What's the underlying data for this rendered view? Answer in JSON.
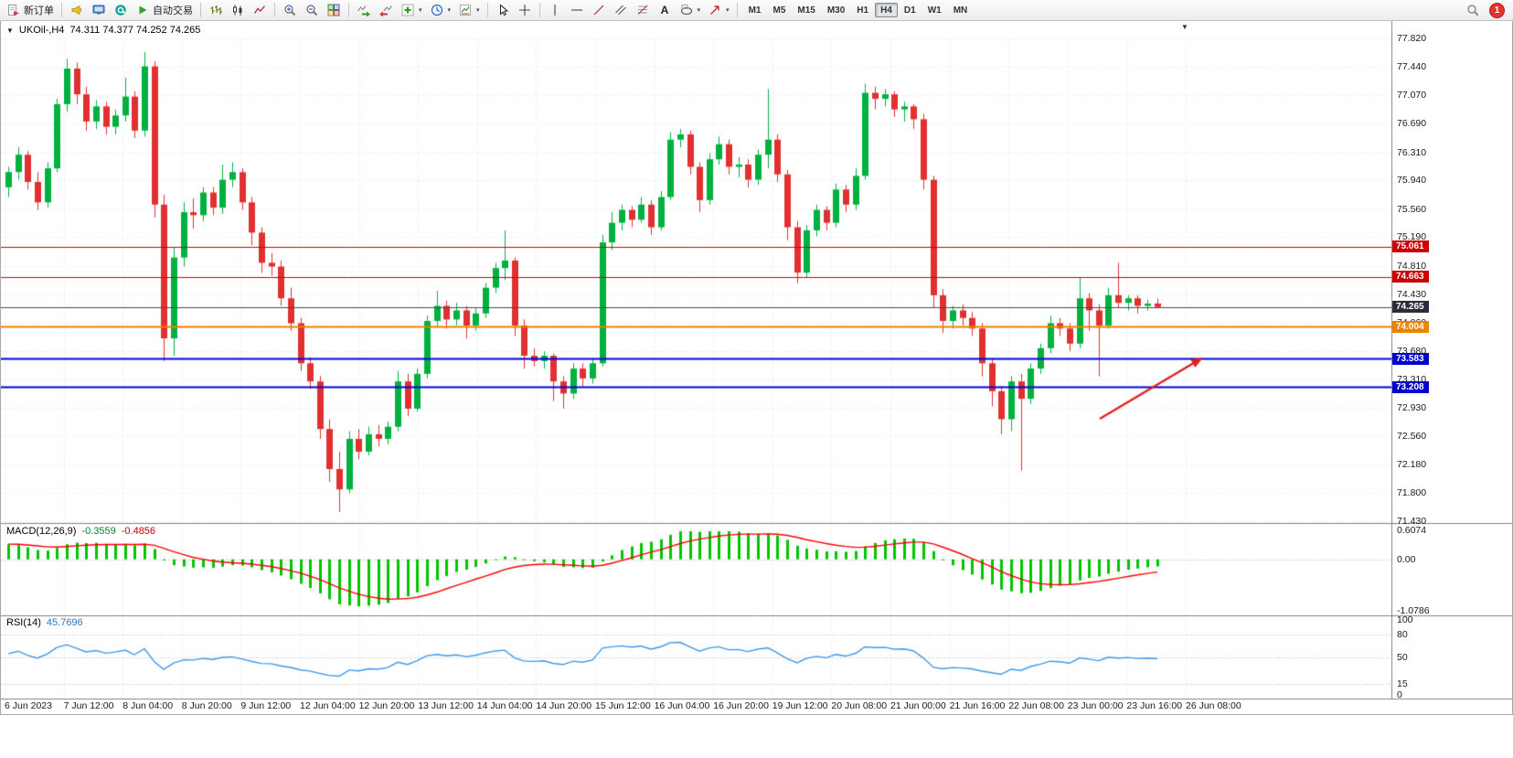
{
  "toolbar": {
    "badge": "1",
    "active_timeframe": "H4",
    "timeframes": [
      "M1",
      "M5",
      "M15",
      "M30",
      "H1",
      "H4",
      "D1",
      "W1",
      "MN"
    ],
    "items": [
      {
        "name": "new-order",
        "icon": "new-order-icon",
        "label": "新订单"
      },
      {
        "type": "sep"
      },
      {
        "name": "megaphone",
        "icon": "megaphone-icon"
      },
      {
        "name": "market-watch",
        "icon": "market-watch-icon"
      },
      {
        "name": "community",
        "icon": "community-icon"
      },
      {
        "name": "autotrading",
        "icon": "autotrading-icon",
        "label": "自动交易"
      },
      {
        "type": "sep"
      },
      {
        "name": "bar-chart",
        "icon": "bar-chart-icon"
      },
      {
        "name": "candle-chart",
        "icon": "candle-chart-icon"
      },
      {
        "name": "line-chart",
        "icon": "line-chart-icon"
      },
      {
        "type": "sep"
      },
      {
        "name": "zoom-in",
        "icon": "zoom-in-icon"
      },
      {
        "name": "zoom-out",
        "icon": "zoom-out-icon"
      },
      {
        "name": "tile-windows",
        "icon": "tile-windows-icon"
      },
      {
        "type": "sep"
      },
      {
        "name": "auto-scroll",
        "icon": "auto-scroll-icon"
      },
      {
        "name": "chart-shift",
        "icon": "chart-shift-icon"
      },
      {
        "name": "indicators",
        "icon": "indicators-icon",
        "caret": true
      },
      {
        "name": "periods",
        "icon": "periods-icon",
        "caret": true
      },
      {
        "name": "templates",
        "icon": "templates-icon",
        "caret": true
      },
      {
        "type": "sep"
      },
      {
        "name": "cursor",
        "icon": "cursor-icon"
      },
      {
        "name": "crosshair",
        "icon": "crosshair-icon"
      },
      {
        "type": "sep"
      },
      {
        "name": "vertical-line",
        "icon": "vline-icon"
      },
      {
        "name": "horizontal-line",
        "icon": "hline-icon"
      },
      {
        "name": "trendline",
        "icon": "trendline-icon"
      },
      {
        "name": "channel",
        "icon": "channel-icon"
      },
      {
        "name": "fibonacci",
        "icon": "fibonacci-icon"
      },
      {
        "name": "text",
        "icon": "text-icon"
      },
      {
        "name": "shapes",
        "icon": "shapes-icon",
        "caret": true
      },
      {
        "name": "arrows",
        "icon": "arrows-icon",
        "caret": true
      },
      {
        "type": "sep"
      }
    ]
  },
  "chart": {
    "title_marker": "▼",
    "shift_marker": "▼",
    "title_symbol": "UKOil-,H4",
    "title_ohlc": "74.311 74.377 74.252 74.265",
    "price_axis": [
      "77.820",
      "77.440",
      "77.070",
      "76.690",
      "76.310",
      "75.940",
      "75.560",
      "75.190",
      "74.810",
      "74.430",
      "74.060",
      "73.680",
      "73.310",
      "72.930",
      "72.560",
      "72.180",
      "71.800",
      "71.430"
    ]
  },
  "macd_panel": {
    "name": "MACD(12,26,9)",
    "value1": "-0.3559",
    "value2": "-0.4856",
    "axis": [
      "0.6074",
      "0.00",
      "-1.0786"
    ]
  },
  "rsi_panel": {
    "name": "RSI(14)",
    "value": "45.7696",
    "axis": [
      "100",
      "80",
      "50",
      "15",
      "0"
    ]
  },
  "colors": {
    "up": "#00b140",
    "down": "#e03030",
    "macd_hist": "#00c400",
    "macd_signal": "#ff0000",
    "rsi_line": "#3e97e8",
    "grid": "#e4e4e4",
    "frame": "#808080"
  },
  "chart_data": {
    "type": "candlestick",
    "symbol": "UKOil-",
    "timeframe": "H4",
    "ylim": [
      71.43,
      77.82
    ],
    "last_ohlc": {
      "open": 74.311,
      "high": 74.377,
      "low": 74.252,
      "close": 74.265
    },
    "x_labels": [
      "6 Jun 2023",
      "7 Jun 12:00",
      "8 Jun 04:00",
      "8 Jun 20:00",
      "9 Jun 12:00",
      "12 Jun 04:00",
      "12 Jun 20:00",
      "13 Jun 12:00",
      "14 Jun 04:00",
      "14 Jun 20:00",
      "15 Jun 12:00",
      "16 Jun 04:00",
      "16 Jun 20:00",
      "19 Jun 12:00",
      "20 Jun 08:00",
      "21 Jun 00:00",
      "21 Jun 16:00",
      "22 Jun 08:00",
      "23 Jun 00:00",
      "23 Jun 16:00",
      "26 Jun 08:00"
    ],
    "levels": [
      {
        "price": 75.061,
        "label": "75.061",
        "color": "#cc0000",
        "width": 1,
        "tag": "#cc0000"
      },
      {
        "price": 74.663,
        "label": "74.663",
        "color": "#cc0000",
        "width": 1,
        "tag": "#cc0000"
      },
      {
        "price": 74.265,
        "label": "74.265",
        "color": "#4a4a4a",
        "width": 1,
        "tag": "#2b2b3c"
      },
      {
        "price": 74.004,
        "label": "74.004",
        "color": "#f08000",
        "width": 2,
        "tag": "#ef8200"
      },
      {
        "price": 73.583,
        "label": "73.583",
        "color": "#0000dd",
        "width": 2,
        "tag": "#0000cc"
      },
      {
        "price": 73.208,
        "label": "73.208",
        "color": "#0000dd",
        "width": 2,
        "tag": "#0000cc"
      }
    ],
    "arrow": {
      "from": [
        1202,
        435
      ],
      "to": [
        1315,
        368
      ],
      "color": "#e02020"
    },
    "indicators": {
      "macd": {
        "params": [
          12,
          26,
          9
        ],
        "value": -0.3559,
        "signal": -0.4856,
        "ylim": [
          -1.0786,
          0.6074
        ]
      },
      "rsi": {
        "period": 14,
        "value": 45.7696,
        "levels": [
          80,
          50,
          15
        ],
        "ylim": [
          0,
          100
        ]
      }
    },
    "candles": [
      [
        75.85,
        76.12,
        75.72,
        76.05
      ],
      [
        76.05,
        76.38,
        75.95,
        76.28
      ],
      [
        76.28,
        76.33,
        75.82,
        75.92
      ],
      [
        75.92,
        76.05,
        75.55,
        75.65
      ],
      [
        75.65,
        76.18,
        75.58,
        76.1
      ],
      [
        76.1,
        77.02,
        76.05,
        76.95
      ],
      [
        76.95,
        77.55,
        76.85,
        77.42
      ],
      [
        77.42,
        77.5,
        76.95,
        77.08
      ],
      [
        77.08,
        77.18,
        76.6,
        76.72
      ],
      [
        76.72,
        77.0,
        76.62,
        76.92
      ],
      [
        76.92,
        76.98,
        76.55,
        76.65
      ],
      [
        76.65,
        76.88,
        76.55,
        76.8
      ],
      [
        76.8,
        77.3,
        76.72,
        77.05
      ],
      [
        77.05,
        77.12,
        76.5,
        76.6
      ],
      [
        76.6,
        77.64,
        76.52,
        77.45
      ],
      [
        77.45,
        77.52,
        75.45,
        75.62
      ],
      [
        75.62,
        75.75,
        73.55,
        73.85
      ],
      [
        73.85,
        75.05,
        73.62,
        74.92
      ],
      [
        74.92,
        75.65,
        74.8,
        75.52
      ],
      [
        75.52,
        75.7,
        75.3,
        75.48
      ],
      [
        75.48,
        75.85,
        75.4,
        75.78
      ],
      [
        75.78,
        75.85,
        75.48,
        75.58
      ],
      [
        75.58,
        76.15,
        75.5,
        75.95
      ],
      [
        75.95,
        76.18,
        75.85,
        76.05
      ],
      [
        76.05,
        76.1,
        75.55,
        75.65
      ],
      [
        75.65,
        75.72,
        75.08,
        75.25
      ],
      [
        75.25,
        75.32,
        74.72,
        74.85
      ],
      [
        74.85,
        74.98,
        74.68,
        74.8
      ],
      [
        74.8,
        74.88,
        74.28,
        74.38
      ],
      [
        74.38,
        74.52,
        73.95,
        74.05
      ],
      [
        74.05,
        74.12,
        73.42,
        73.52
      ],
      [
        73.52,
        73.6,
        73.18,
        73.28
      ],
      [
        73.28,
        73.35,
        72.52,
        72.65
      ],
      [
        72.65,
        72.78,
        71.95,
        72.12
      ],
      [
        72.12,
        72.35,
        71.55,
        71.85
      ],
      [
        71.85,
        72.62,
        71.8,
        72.52
      ],
      [
        72.52,
        72.65,
        72.25,
        72.35
      ],
      [
        72.35,
        72.68,
        72.3,
        72.58
      ],
      [
        72.58,
        72.7,
        72.42,
        72.52
      ],
      [
        72.52,
        72.75,
        72.45,
        72.68
      ],
      [
        72.68,
        73.42,
        72.62,
        73.28
      ],
      [
        73.28,
        73.38,
        72.82,
        72.92
      ],
      [
        72.92,
        73.45,
        72.88,
        73.38
      ],
      [
        73.38,
        74.15,
        73.32,
        74.08
      ],
      [
        74.08,
        74.48,
        74.0,
        74.28
      ],
      [
        74.28,
        74.35,
        73.98,
        74.1
      ],
      [
        74.1,
        74.32,
        74.02,
        74.22
      ],
      [
        74.22,
        74.28,
        73.85,
        74.02
      ],
      [
        74.02,
        74.25,
        73.95,
        74.18
      ],
      [
        74.18,
        74.58,
        74.12,
        74.52
      ],
      [
        74.52,
        74.85,
        74.45,
        74.78
      ],
      [
        74.78,
        75.28,
        74.62,
        74.88
      ],
      [
        74.88,
        74.92,
        73.88,
        74.02
      ],
      [
        74.02,
        74.1,
        73.45,
        73.62
      ],
      [
        73.62,
        73.72,
        73.48,
        73.55
      ],
      [
        73.55,
        73.68,
        73.45,
        73.62
      ],
      [
        73.62,
        73.65,
        73.02,
        73.28
      ],
      [
        73.28,
        73.35,
        72.92,
        73.12
      ],
      [
        73.12,
        73.52,
        73.05,
        73.45
      ],
      [
        73.45,
        73.52,
        73.22,
        73.32
      ],
      [
        73.32,
        73.58,
        73.25,
        73.52
      ],
      [
        73.52,
        75.22,
        73.48,
        75.12
      ],
      [
        75.12,
        75.52,
        75.02,
        75.38
      ],
      [
        75.38,
        75.62,
        75.28,
        75.55
      ],
      [
        75.55,
        75.6,
        75.32,
        75.42
      ],
      [
        75.42,
        75.72,
        75.38,
        75.62
      ],
      [
        75.62,
        75.68,
        75.22,
        75.32
      ],
      [
        75.32,
        75.8,
        75.28,
        75.72
      ],
      [
        75.72,
        76.58,
        75.68,
        76.48
      ],
      [
        76.48,
        76.62,
        76.38,
        76.55
      ],
      [
        76.55,
        76.6,
        76.02,
        76.12
      ],
      [
        76.12,
        76.18,
        75.52,
        75.68
      ],
      [
        75.68,
        76.3,
        75.62,
        76.22
      ],
      [
        76.22,
        76.52,
        76.15,
        76.42
      ],
      [
        76.42,
        76.48,
        76.02,
        76.12
      ],
      [
        76.12,
        76.25,
        75.98,
        76.15
      ],
      [
        76.15,
        76.22,
        75.85,
        75.95
      ],
      [
        75.95,
        76.35,
        75.88,
        76.28
      ],
      [
        76.28,
        77.15,
        76.1,
        76.48
      ],
      [
        76.48,
        76.55,
        75.92,
        76.02
      ],
      [
        76.02,
        76.08,
        75.15,
        75.32
      ],
      [
        75.32,
        75.4,
        74.58,
        74.72
      ],
      [
        74.72,
        75.35,
        74.65,
        75.28
      ],
      [
        75.28,
        75.62,
        75.2,
        75.55
      ],
      [
        75.55,
        75.6,
        75.28,
        75.38
      ],
      [
        75.38,
        75.9,
        75.32,
        75.82
      ],
      [
        75.82,
        75.88,
        75.52,
        75.62
      ],
      [
        75.62,
        76.1,
        75.55,
        76.0
      ],
      [
        76.0,
        77.22,
        75.95,
        77.1
      ],
      [
        77.1,
        77.18,
        76.88,
        77.02
      ],
      [
        77.02,
        77.15,
        76.92,
        77.08
      ],
      [
        77.08,
        77.12,
        76.78,
        76.88
      ],
      [
        76.88,
        76.98,
        76.72,
        76.92
      ],
      [
        76.92,
        76.95,
        76.62,
        76.75
      ],
      [
        76.75,
        76.82,
        75.82,
        75.95
      ],
      [
        75.95,
        76.0,
        74.25,
        74.42
      ],
      [
        74.42,
        74.5,
        73.92,
        74.08
      ],
      [
        74.08,
        74.28,
        73.98,
        74.22
      ],
      [
        74.22,
        74.3,
        74.02,
        74.12
      ],
      [
        74.12,
        74.2,
        73.88,
        73.98
      ],
      [
        73.98,
        74.05,
        73.35,
        73.52
      ],
      [
        73.52,
        73.58,
        72.95,
        73.15
      ],
      [
        73.15,
        73.22,
        72.58,
        72.78
      ],
      [
        72.78,
        73.35,
        72.62,
        73.28
      ],
      [
        73.28,
        73.38,
        72.1,
        73.05
      ],
      [
        73.05,
        73.52,
        72.98,
        73.45
      ],
      [
        73.45,
        73.78,
        73.38,
        73.72
      ],
      [
        73.72,
        74.15,
        73.65,
        74.05
      ],
      [
        74.05,
        74.12,
        73.88,
        73.98
      ],
      [
        73.98,
        74.05,
        73.68,
        73.78
      ],
      [
        73.78,
        74.65,
        73.72,
        74.38
      ],
      [
        74.38,
        74.45,
        73.95,
        74.22
      ],
      [
        74.22,
        74.3,
        73.35,
        74.02
      ],
      [
        74.02,
        74.52,
        73.98,
        74.42
      ],
      [
        74.42,
        74.85,
        74.25,
        74.32
      ],
      [
        74.32,
        74.42,
        74.22,
        74.38
      ],
      [
        74.38,
        74.42,
        74.18,
        74.28
      ],
      [
        74.28,
        74.36,
        74.22,
        74.31
      ],
      [
        74.311,
        74.377,
        74.252,
        74.265
      ]
    ]
  }
}
